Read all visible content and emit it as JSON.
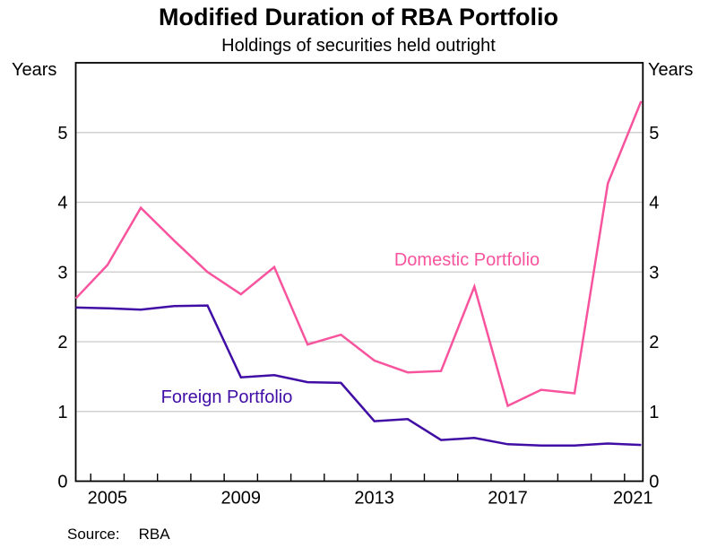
{
  "header": {
    "title": "Modified Duration of RBA Portfolio",
    "subtitle": "Holdings of securities held outright"
  },
  "axis_units": {
    "left": "Years",
    "right": "Years"
  },
  "footer": {
    "source_label": "Source:",
    "source_value": "RBA"
  },
  "chart_data": {
    "type": "line",
    "title": "Modified Duration of RBA Portfolio",
    "subtitle": "Holdings of securities held outright",
    "ylabel": "Years",
    "xlabel": "",
    "grid": "horizontal",
    "legend_position": "inline-labels",
    "ylim": [
      0,
      6
    ],
    "y_tick_values": [
      0,
      1,
      2,
      3,
      4,
      5
    ],
    "y_tick_labels": [
      "0",
      "1",
      "2",
      "3",
      "4",
      "5"
    ],
    "y_grid_values": [
      1,
      2,
      3,
      4,
      5
    ],
    "xlim": [
      2004.55,
      2021.55
    ],
    "x_tick_years": [
      2005,
      2006,
      2007,
      2008,
      2009,
      2010,
      2011,
      2012,
      2013,
      2014,
      2015,
      2016,
      2017,
      2018,
      2019,
      2020,
      2021
    ],
    "x_axis_labels": [
      {
        "year": 2005,
        "label": "2005"
      },
      {
        "year": 2009,
        "label": "2009"
      },
      {
        "year": 2013,
        "label": "2013"
      },
      {
        "year": 2017,
        "label": "2017"
      },
      {
        "year": 2021,
        "label": "2021"
      }
    ],
    "x": [
      2004,
      2005,
      2006,
      2007,
      2008,
      2009,
      2010,
      2011,
      2012,
      2013,
      2014,
      2015,
      2016,
      2017,
      2018,
      2019,
      2020,
      2021
    ],
    "x_note": "annual observations plotted at mid-year",
    "series": [
      {
        "name": "Domestic Portfolio",
        "color": "#f8549e",
        "values": [
          2.62,
          3.1,
          3.92,
          3.45,
          3.0,
          2.68,
          3.07,
          1.96,
          2.1,
          1.73,
          1.56,
          1.58,
          2.79,
          1.08,
          1.31,
          1.26,
          4.27,
          5.45
        ]
      },
      {
        "name": "Foreign Portfolio",
        "color": "#400da5",
        "values": [
          2.49,
          2.48,
          2.46,
          2.51,
          2.52,
          1.49,
          1.52,
          1.42,
          1.41,
          0.86,
          0.89,
          0.59,
          0.62,
          0.53,
          0.51,
          0.51,
          0.54,
          0.52
        ]
      }
    ],
    "frame_color": "#000000",
    "gridline_color": "#c9c9c9",
    "source": "RBA"
  }
}
